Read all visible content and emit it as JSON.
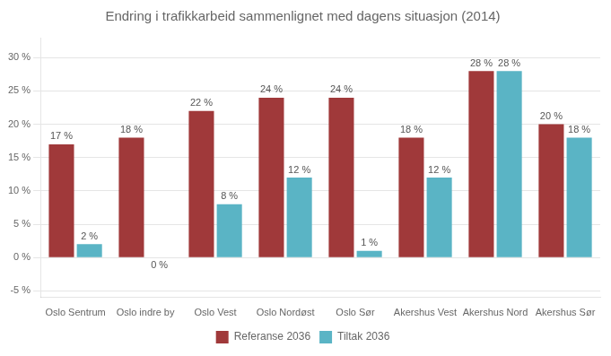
{
  "chart_data": {
    "type": "bar",
    "title": "Endring i trafikkarbeid sammenlignet med dagens situasjon (2014)",
    "categories": [
      "Oslo Sentrum",
      "Oslo indre by",
      "Oslo Vest",
      "Oslo Nordøst",
      "Oslo Sør",
      "Akershus Vest",
      "Akershus Nord",
      "Akershus Sør"
    ],
    "series": [
      {
        "name": "Referanse 2036",
        "color": "#A0393A",
        "values": [
          17,
          18,
          22,
          24,
          24,
          18,
          28,
          20
        ],
        "value_labels": [
          "17 %",
          "18 %",
          "22 %",
          "24 %",
          "24 %",
          "18 %",
          "28 %",
          "20 %"
        ]
      },
      {
        "name": "Tiltak 2036",
        "color": "#5AB4C5",
        "values": [
          2,
          0,
          8,
          12,
          1,
          12,
          28,
          18
        ],
        "value_labels": [
          "2 %",
          "0 %",
          "8 %",
          "12 %",
          "1 %",
          "12 %",
          "28 %",
          "18 %"
        ]
      }
    ],
    "ylim": [
      -6,
      33
    ],
    "yticks": [
      {
        "value": -5,
        "label": "-5 %"
      },
      {
        "value": 0,
        "label": "0 %"
      },
      {
        "value": 5,
        "label": "5 %"
      },
      {
        "value": 10,
        "label": "10 %"
      },
      {
        "value": 15,
        "label": "15 %"
      },
      {
        "value": 20,
        "label": "20 %"
      },
      {
        "value": 25,
        "label": "25 %"
      },
      {
        "value": 30,
        "label": "30 %"
      }
    ],
    "grid": true,
    "legend": "bottom",
    "data_labels": true
  }
}
